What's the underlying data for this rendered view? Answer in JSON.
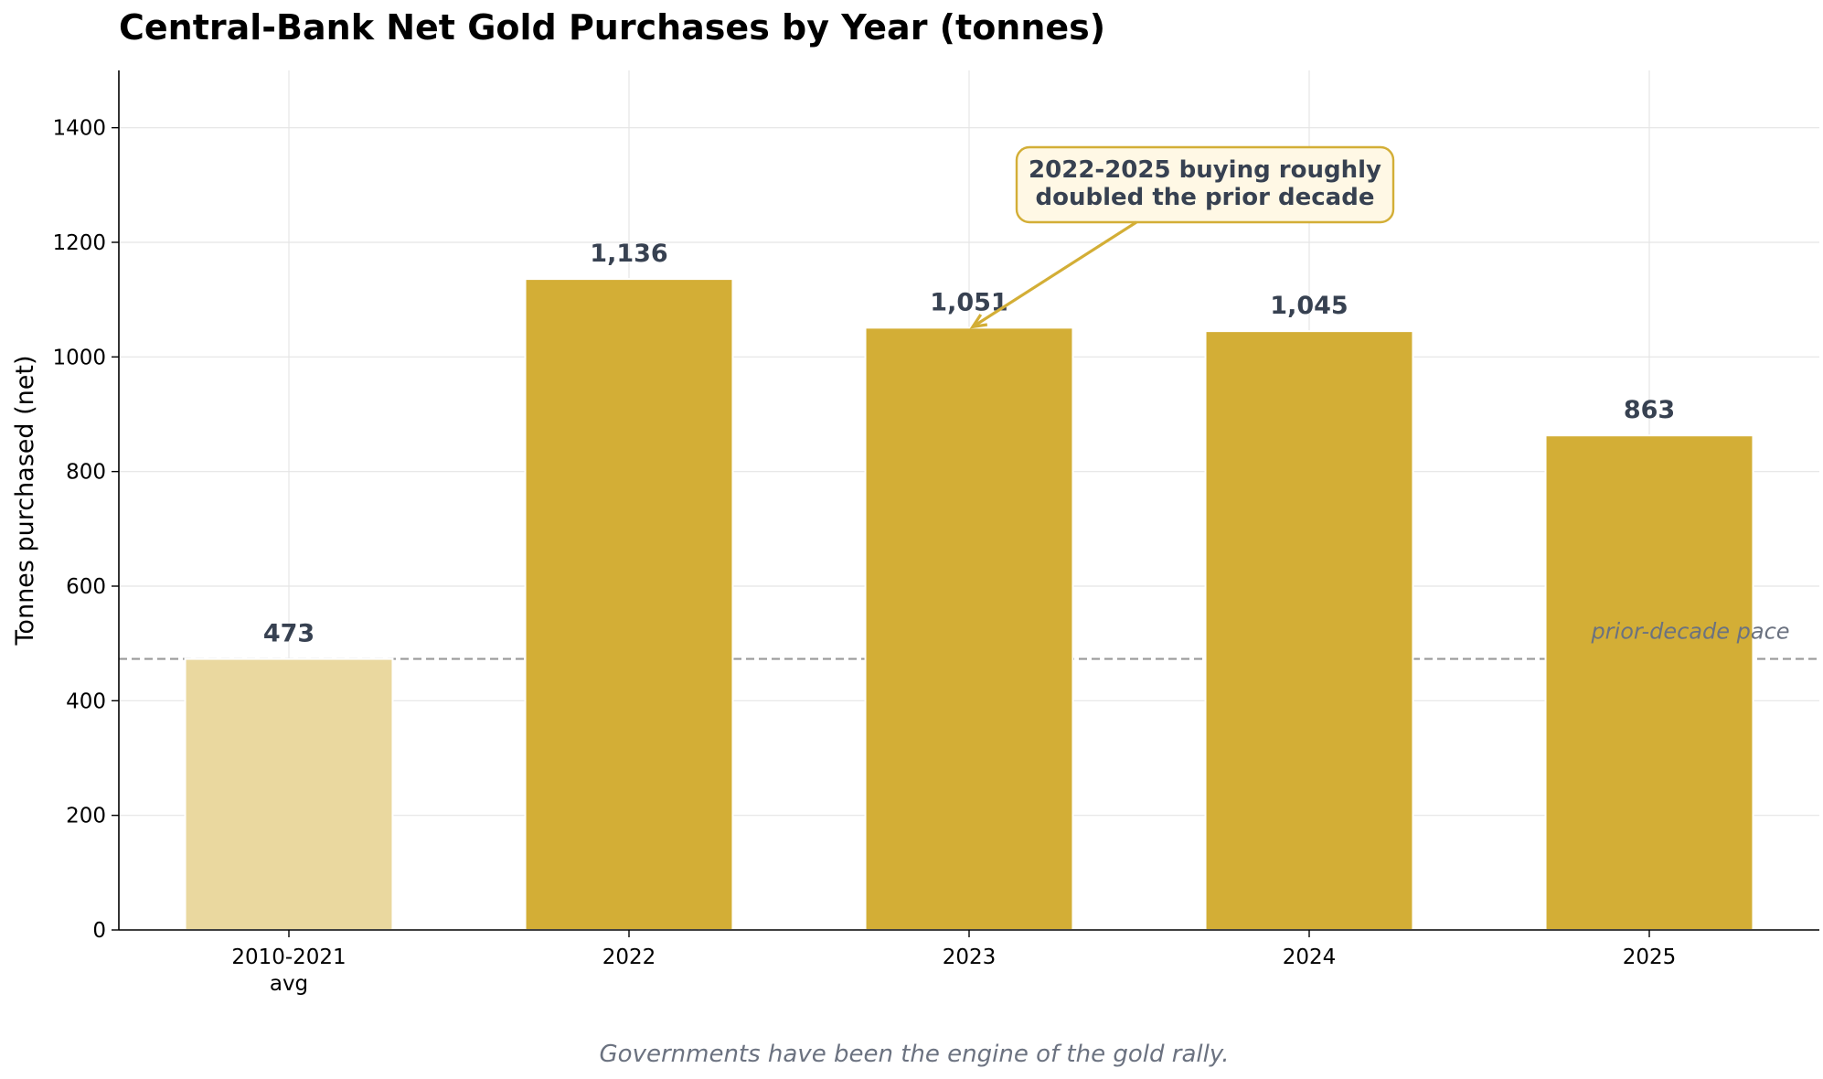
{
  "chart_data": {
    "type": "bar",
    "title": "Central-Bank Net Gold Purchases by Year (tonnes)",
    "xlabel": "",
    "ylabel": "Tonnes purchased (net)",
    "categories": [
      [
        "2010-2021",
        "avg"
      ],
      [
        "2022"
      ],
      [
        "2023"
      ],
      [
        "2024"
      ],
      [
        "2025"
      ]
    ],
    "values": [
      473,
      1136,
      1051,
      1045,
      863
    ],
    "value_labels": [
      "473",
      "1,136",
      "1,051",
      "1,045",
      "863"
    ],
    "bar_colors": [
      "#ead89f",
      "#d3ae36",
      "#d3ae36",
      "#d3ae36",
      "#d3ae36"
    ],
    "ylim": [
      0,
      1500
    ],
    "yticks": [
      0,
      200,
      400,
      600,
      800,
      1000,
      1200,
      1400
    ],
    "grid": true,
    "reference_line": {
      "value": 473,
      "label": "prior-decade pace",
      "color": "#999999"
    },
    "annotation": {
      "lines": [
        "2022-2025 buying roughly",
        "doubled the prior decade"
      ],
      "points_to_category": 2,
      "points_to_value": 1051,
      "box_fill": "#fff8e5",
      "box_border": "#d3ae36"
    },
    "caption": "Governments have been the engine of the gold rally."
  }
}
